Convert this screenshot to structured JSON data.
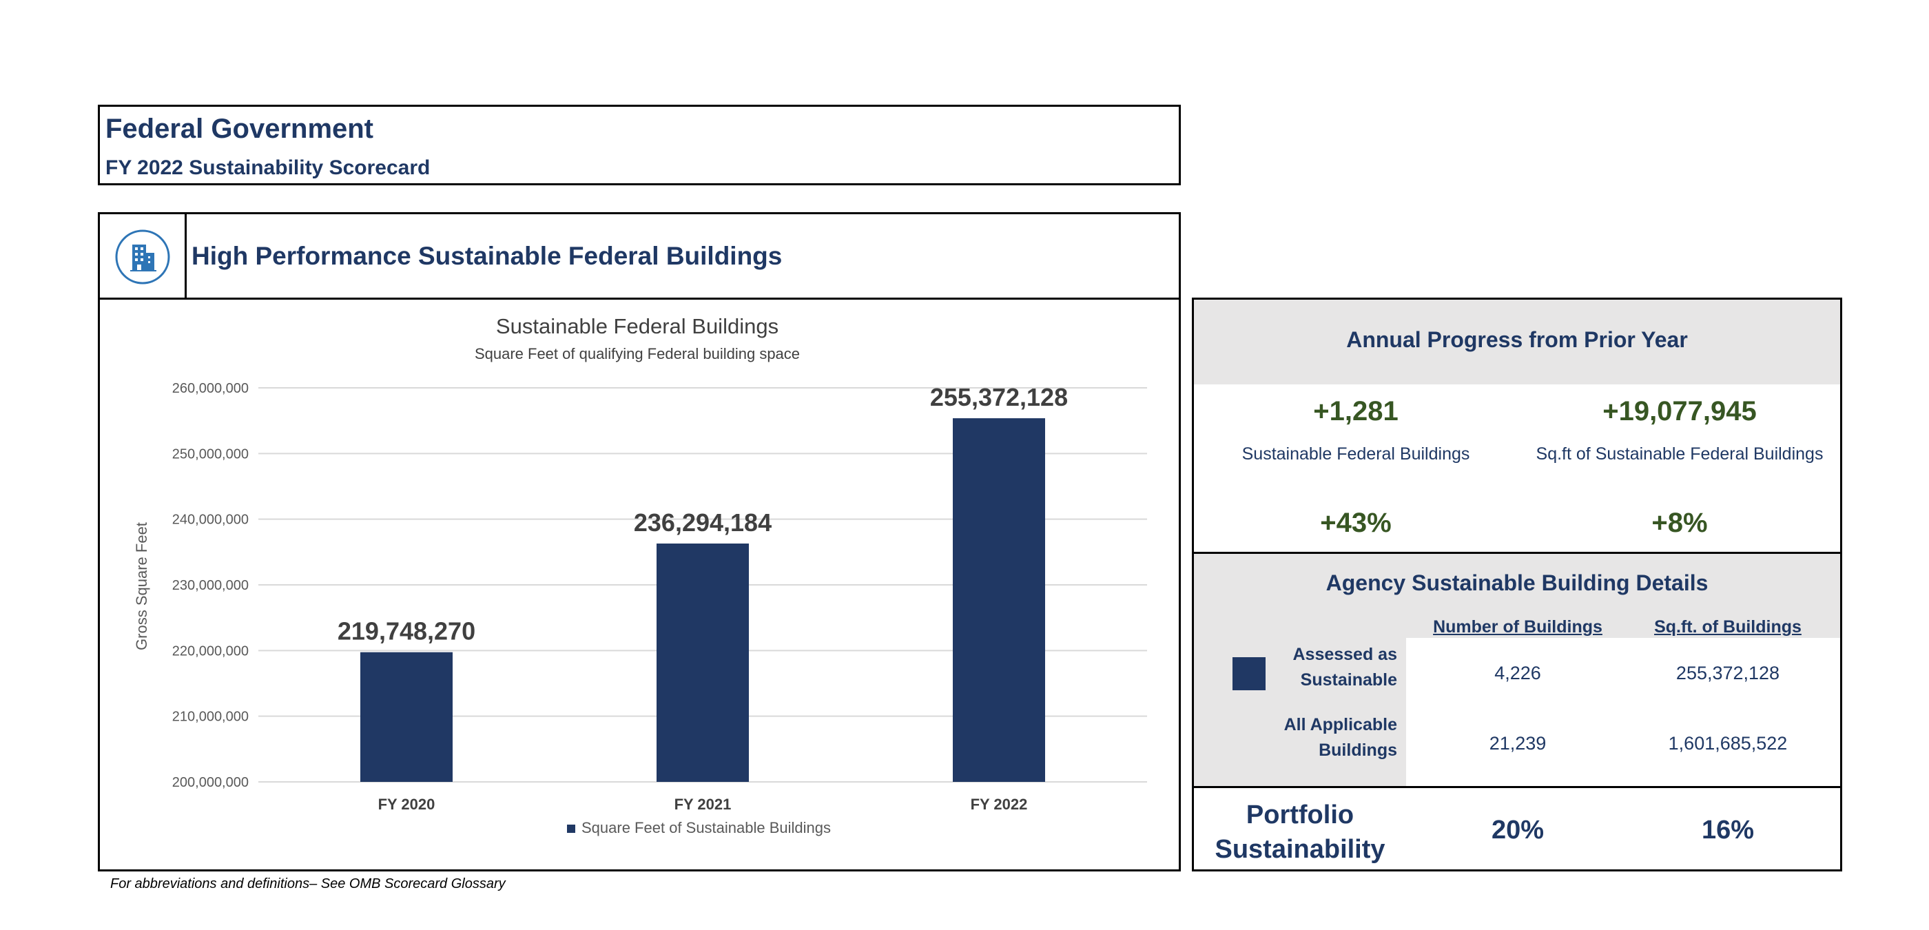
{
  "header": {
    "title": "Federal Government",
    "subtitle": "FY 2022 Sustainability Scorecard"
  },
  "section": {
    "icon": "building-icon",
    "title": "High Performance Sustainable Federal Buildings"
  },
  "chart_data": {
    "type": "bar",
    "title": "Sustainable Federal Buildings",
    "subtitle": "Square Feet of qualifying Federal building space",
    "xlabel": "",
    "ylabel": "Gross Square Feet",
    "categories": [
      "FY 2020",
      "FY 2021",
      "FY 2022"
    ],
    "series": [
      {
        "name": "Square Feet of Sustainable Buildings",
        "values": [
          219748270,
          236294184,
          255372128
        ]
      }
    ],
    "data_labels": [
      "219,748,270",
      "236,294,184",
      "255,372,128"
    ],
    "ylim": [
      200000000,
      260000000
    ],
    "yticks": [
      200000000,
      210000000,
      220000000,
      230000000,
      240000000,
      250000000,
      260000000
    ],
    "ytick_labels": [
      "200,000,000",
      "210,000,000",
      "220,000,000",
      "230,000,000",
      "240,000,000",
      "250,000,000",
      "260,000,000"
    ],
    "grid": true,
    "legend": "bottom",
    "bar_color": "#203864"
  },
  "annual": {
    "title": "Annual Progress from Prior Year",
    "buildings_delta": "+1,281",
    "buildings_label": "Sustainable Federal Buildings",
    "sqft_delta": "+19,077,945",
    "sqft_label": "Sq.ft of Sustainable Federal Buildings",
    "buildings_pct": "+43%",
    "sqft_pct": "+8%"
  },
  "agency": {
    "title": "Agency Sustainable Building Details",
    "col_buildings": "Number of Buildings",
    "col_sqft": "Sq.ft. of Buildings",
    "row1_label_line1": "Assessed as",
    "row1_label_line2": "Sustainable",
    "row1_buildings": "4,226",
    "row1_sqft": "255,372,128",
    "row2_label_line1": "All Applicable",
    "row2_label_line2": "Buildings",
    "row2_buildings": "21,239",
    "row2_sqft": "1,601,685,522"
  },
  "portfolio": {
    "label_line1": "Portfolio",
    "label_line2": "Sustainability",
    "buildings_pct": "20%",
    "sqft_pct": "16%"
  },
  "footnote": "For abbreviations and definitions– See OMB Scorecard Glossary",
  "colors": {
    "navy": "#1f3864",
    "bar": "#203864",
    "green": "#375623",
    "panel_gray": "#e7e6e6"
  }
}
